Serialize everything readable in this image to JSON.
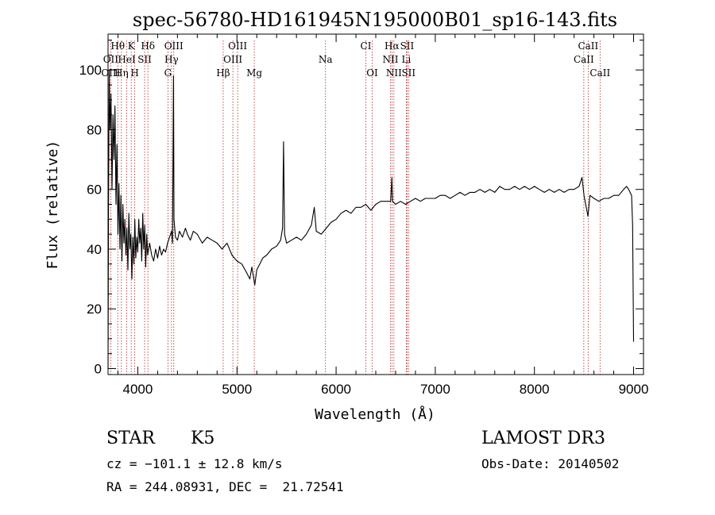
{
  "chart_data": {
    "type": "line",
    "title": "spec-56780-HD161945N195000B01_sp16-143.fits",
    "xlabel": "Wavelength (Å)",
    "ylabel": "Flux (relative)",
    "xlim": [
      3700,
      9100
    ],
    "ylim": [
      -2,
      112
    ],
    "x_ticks": [
      4000,
      5000,
      6000,
      7000,
      8000,
      9000
    ],
    "y_ticks": [
      0,
      20,
      40,
      60,
      80,
      100
    ],
    "grid": false,
    "series": [
      {
        "points": [
          [
            3700,
            0
          ],
          [
            3705,
            55
          ],
          [
            3712,
            100
          ],
          [
            3720,
            80
          ],
          [
            3730,
            92
          ],
          [
            3740,
            60
          ],
          [
            3750,
            85
          ],
          [
            3760,
            70
          ],
          [
            3770,
            88
          ],
          [
            3780,
            55
          ],
          [
            3790,
            75
          ],
          [
            3800,
            45
          ],
          [
            3810,
            62
          ],
          [
            3820,
            40
          ],
          [
            3830,
            58
          ],
          [
            3840,
            36
          ],
          [
            3850,
            55
          ],
          [
            3860,
            42
          ],
          [
            3870,
            50
          ],
          [
            3880,
            38
          ],
          [
            3890,
            47
          ],
          [
            3900,
            33
          ],
          [
            3910,
            52
          ],
          [
            3920,
            40
          ],
          [
            3930,
            45
          ],
          [
            3940,
            30
          ],
          [
            3950,
            44
          ],
          [
            3960,
            35
          ],
          [
            3970,
            50
          ],
          [
            3980,
            37
          ],
          [
            3990,
            44
          ],
          [
            4000,
            39
          ],
          [
            4010,
            50
          ],
          [
            4020,
            42
          ],
          [
            4030,
            47
          ],
          [
            4040,
            36
          ],
          [
            4050,
            52
          ],
          [
            4060,
            40
          ],
          [
            4070,
            48
          ],
          [
            4080,
            34
          ],
          [
            4090,
            45
          ],
          [
            4100,
            38
          ],
          [
            4120,
            42
          ],
          [
            4140,
            38
          ],
          [
            4160,
            36
          ],
          [
            4180,
            40
          ],
          [
            4200,
            37
          ],
          [
            4220,
            41
          ],
          [
            4240,
            38
          ],
          [
            4260,
            40
          ],
          [
            4280,
            39
          ],
          [
            4300,
            42
          ],
          [
            4320,
            44
          ],
          [
            4340,
            46
          ],
          [
            4350,
            42
          ],
          [
            4360,
            98
          ],
          [
            4365,
            50
          ],
          [
            4380,
            44
          ],
          [
            4400,
            43
          ],
          [
            4420,
            46
          ],
          [
            4450,
            44
          ],
          [
            4480,
            47
          ],
          [
            4500,
            45
          ],
          [
            4530,
            43
          ],
          [
            4560,
            46
          ],
          [
            4600,
            45
          ],
          [
            4650,
            42
          ],
          [
            4700,
            44
          ],
          [
            4750,
            43
          ],
          [
            4800,
            42
          ],
          [
            4850,
            40
          ],
          [
            4900,
            42
          ],
          [
            4950,
            38
          ],
          [
            5000,
            36
          ],
          [
            5050,
            35
          ],
          [
            5100,
            32
          ],
          [
            5130,
            30
          ],
          [
            5150,
            34
          ],
          [
            5180,
            28
          ],
          [
            5200,
            33
          ],
          [
            5230,
            35
          ],
          [
            5260,
            37
          ],
          [
            5300,
            38
          ],
          [
            5350,
            40
          ],
          [
            5400,
            41
          ],
          [
            5440,
            43
          ],
          [
            5460,
            47
          ],
          [
            5470,
            76
          ],
          [
            5480,
            45
          ],
          [
            5500,
            42
          ],
          [
            5550,
            43
          ],
          [
            5600,
            44
          ],
          [
            5650,
            43
          ],
          [
            5700,
            45
          ],
          [
            5750,
            48
          ],
          [
            5780,
            54
          ],
          [
            5800,
            46
          ],
          [
            5850,
            45
          ],
          [
            5900,
            47
          ],
          [
            5950,
            49
          ],
          [
            6000,
            50
          ],
          [
            6050,
            52
          ],
          [
            6100,
            53
          ],
          [
            6150,
            52
          ],
          [
            6200,
            54
          ],
          [
            6250,
            54
          ],
          [
            6300,
            55
          ],
          [
            6350,
            53
          ],
          [
            6400,
            55
          ],
          [
            6450,
            56
          ],
          [
            6500,
            56
          ],
          [
            6550,
            56
          ],
          [
            6563,
            64
          ],
          [
            6570,
            56
          ],
          [
            6600,
            55
          ],
          [
            6650,
            56
          ],
          [
            6700,
            55
          ],
          [
            6750,
            56
          ],
          [
            6800,
            57
          ],
          [
            6850,
            56
          ],
          [
            6900,
            57
          ],
          [
            6950,
            57
          ],
          [
            7000,
            57
          ],
          [
            7050,
            58
          ],
          [
            7100,
            58
          ],
          [
            7150,
            57
          ],
          [
            7200,
            58
          ],
          [
            7250,
            59
          ],
          [
            7300,
            58
          ],
          [
            7350,
            59
          ],
          [
            7400,
            59
          ],
          [
            7450,
            60
          ],
          [
            7500,
            59
          ],
          [
            7550,
            60
          ],
          [
            7600,
            59
          ],
          [
            7650,
            61
          ],
          [
            7700,
            60
          ],
          [
            7750,
            60
          ],
          [
            7800,
            61
          ],
          [
            7850,
            60
          ],
          [
            7900,
            61
          ],
          [
            7950,
            60
          ],
          [
            8000,
            61
          ],
          [
            8050,
            60
          ],
          [
            8100,
            59
          ],
          [
            8150,
            60
          ],
          [
            8200,
            59
          ],
          [
            8250,
            60
          ],
          [
            8300,
            59
          ],
          [
            8350,
            60
          ],
          [
            8400,
            60
          ],
          [
            8450,
            61
          ],
          [
            8480,
            64
          ],
          [
            8500,
            58
          ],
          [
            8540,
            51
          ],
          [
            8560,
            58
          ],
          [
            8600,
            57
          ],
          [
            8650,
            56
          ],
          [
            8700,
            57
          ],
          [
            8750,
            57
          ],
          [
            8800,
            58
          ],
          [
            8850,
            58
          ],
          [
            8900,
            60
          ],
          [
            8930,
            61
          ],
          [
            8950,
            60
          ],
          [
            8980,
            58
          ],
          [
            8990,
            48
          ],
          [
            9000,
            9
          ]
        ]
      }
    ],
    "line_labels": [
      {
        "text": "Hθ",
        "x": 3798,
        "row": 0
      },
      {
        "text": "K",
        "x": 3934,
        "row": 0
      },
      {
        "text": "Hδ",
        "x": 4102,
        "row": 0
      },
      {
        "text": "OIII",
        "x": 4363,
        "row": 0
      },
      {
        "text": "OIII",
        "x": 5007,
        "row": 0
      },
      {
        "text": "CI",
        "x": 6300,
        "row": 0
      },
      {
        "text": "Hα",
        "x": 6563,
        "row": 0
      },
      {
        "text": "SII",
        "x": 6716,
        "row": 0
      },
      {
        "text": "CaII",
        "x": 8542,
        "row": 0
      },
      {
        "text": "OII",
        "x": 3727,
        "row": 1
      },
      {
        "text": "HeI",
        "x": 3889,
        "row": 1
      },
      {
        "text": "SII",
        "x": 4069,
        "row": 1
      },
      {
        "text": "Hγ",
        "x": 4340,
        "row": 1
      },
      {
        "text": "OIII",
        "x": 4959,
        "row": 1
      },
      {
        "text": "Na",
        "x": 5893,
        "row": 1
      },
      {
        "text": "NII",
        "x": 6548,
        "row": 1
      },
      {
        "text": "Li",
        "x": 6708,
        "row": 1
      },
      {
        "text": "CaII",
        "x": 8498,
        "row": 1
      },
      {
        "text": "OIII",
        "x": 3727,
        "row": 2
      },
      {
        "text": "Hη",
        "x": 3835,
        "row": 2
      },
      {
        "text": "H",
        "x": 3969,
        "row": 2
      },
      {
        "text": "G",
        "x": 4304,
        "row": 2
      },
      {
        "text": "Hβ",
        "x": 4861,
        "row": 2
      },
      {
        "text": "Mg",
        "x": 5175,
        "row": 2
      },
      {
        "text": "OI",
        "x": 6364,
        "row": 2
      },
      {
        "text": "NII",
        "x": 6583,
        "row": 2
      },
      {
        "text": "SII",
        "x": 6731,
        "row": 2
      },
      {
        "text": "CaII",
        "x": 8662,
        "row": 2
      }
    ],
    "marker_lines": [
      3727,
      3798,
      3835,
      3889,
      3934,
      3969,
      4069,
      4102,
      4304,
      4340,
      4363,
      4861,
      4959,
      5007,
      5175,
      5893,
      6300,
      6364,
      6548,
      6563,
      6583,
      6708,
      6716,
      6731,
      8498,
      8542,
      8662
    ],
    "marker_color": "#b22222",
    "line_color": "#000000"
  },
  "footer": {
    "object_class": "STAR",
    "subclass": "K5",
    "survey": "LAMOST DR3",
    "cz": "cz = −101.1 ± 12.8 km/s",
    "obs_date": "Obs-Date: 20140502",
    "coords": "RA = 244.08931, DEC =  21.72541"
  }
}
